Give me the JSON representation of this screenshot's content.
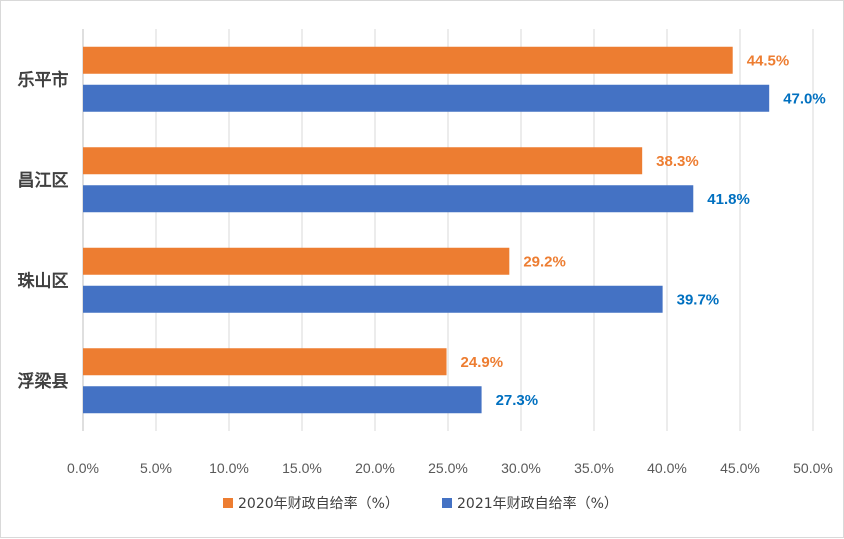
{
  "chart_data": {
    "type": "bar",
    "orientation": "horizontal",
    "categories": [
      "乐平市",
      "昌江区",
      "珠山区",
      "浮梁县"
    ],
    "series": [
      {
        "name": "2020年财政自给率（%）",
        "values": [
          44.5,
          38.3,
          29.2,
          24.9
        ],
        "labels": [
          "44.5%",
          "38.3%",
          "29.2%",
          "24.9%"
        ],
        "color": "#ED7D31",
        "label_color": "#ED7D31"
      },
      {
        "name": "2021年财政自给率（%）",
        "values": [
          47.0,
          41.8,
          39.7,
          27.3
        ],
        "labels": [
          "47.0%",
          "41.8%",
          "39.7%",
          "27.3%"
        ],
        "color": "#4472C4",
        "label_color": "#0070C0"
      }
    ],
    "xlim": [
      0,
      50
    ],
    "x_ticks": [
      "0.0%",
      "5.0%",
      "10.0%",
      "15.0%",
      "20.0%",
      "25.0%",
      "30.0%",
      "35.0%",
      "40.0%",
      "45.0%",
      "50.0%"
    ],
    "gridlines": true,
    "legend_position": "bottom",
    "title": "",
    "xlabel": "",
    "ylabel": ""
  }
}
